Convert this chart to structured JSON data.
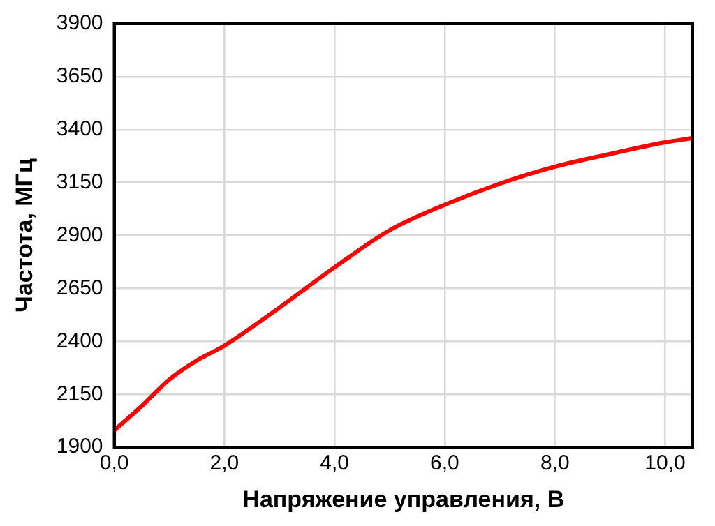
{
  "chart_data": {
    "type": "line",
    "xlabel": "Напряжение управления, В",
    "ylabel": "Частота, МГц",
    "x": [
      0,
      0.5,
      1,
      1.5,
      2,
      3,
      4,
      5,
      6,
      7,
      8,
      9,
      10,
      10.5
    ],
    "series": [
      {
        "color": "#ff0000",
        "values": [
          1980,
          2095,
          2220,
          2310,
          2380,
          2560,
          2750,
          2925,
          3045,
          3145,
          3225,
          3285,
          3340,
          3360
        ]
      }
    ],
    "xlim": [
      0,
      10.5
    ],
    "xticks": [
      {
        "value": 0,
        "label": "0,0"
      },
      {
        "value": 2,
        "label": "2,0"
      },
      {
        "value": 4,
        "label": "4,0"
      },
      {
        "value": 6,
        "label": "6,0"
      },
      {
        "value": 8,
        "label": "8,0"
      },
      {
        "value": 10,
        "label": "10,0"
      }
    ],
    "ylim": [
      1900,
      3900
    ],
    "yticks": [
      1900,
      2150,
      2400,
      2650,
      2900,
      3150,
      3400,
      3650,
      3900
    ],
    "grid": true,
    "legend": false,
    "marker": "none",
    "line_style": "solid"
  }
}
